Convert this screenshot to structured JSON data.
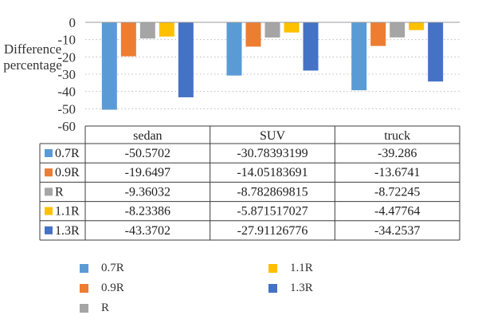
{
  "chart_data": {
    "type": "bar",
    "ylabel": "Difference percentage",
    "ylim": [
      -60,
      0
    ],
    "yticks": [
      0,
      -10,
      -20,
      -30,
      -40,
      -50,
      -60
    ],
    "gridlines": "dotted",
    "legend_position": "bottom",
    "categories": [
      "sedan",
      "SUV",
      "truck"
    ],
    "series": [
      {
        "name": "0.7R",
        "color": "#5b9bd5",
        "values": [
          -50.5702,
          -30.78393199,
          -39.286
        ],
        "labels": [
          "-50.5702",
          "-30.78393199",
          "-39.286"
        ]
      },
      {
        "name": "0.9R",
        "color": "#ed7d31",
        "values": [
          -19.6497,
          -14.05183691,
          -13.6741
        ],
        "labels": [
          "-19.6497",
          "-14.05183691",
          "-13.6741"
        ]
      },
      {
        "name": "R",
        "color": "#a5a5a5",
        "values": [
          -9.36032,
          -8.782869815,
          -8.72245
        ],
        "labels": [
          "-9.36032",
          "-8.782869815",
          "-8.72245"
        ]
      },
      {
        "name": "1.1R",
        "color": "#ffc000",
        "values": [
          -8.23386,
          -5.871517027,
          -4.47764
        ],
        "labels": [
          "-8.23386",
          "-5.871517027",
          "-4.47764"
        ]
      },
      {
        "name": "1.3R",
        "color": "#4472c4",
        "values": [
          -43.3702,
          -27.91126776,
          -34.2537
        ],
        "labels": [
          "-43.3702",
          "-27.91126776",
          "-34.2537"
        ]
      }
    ]
  }
}
